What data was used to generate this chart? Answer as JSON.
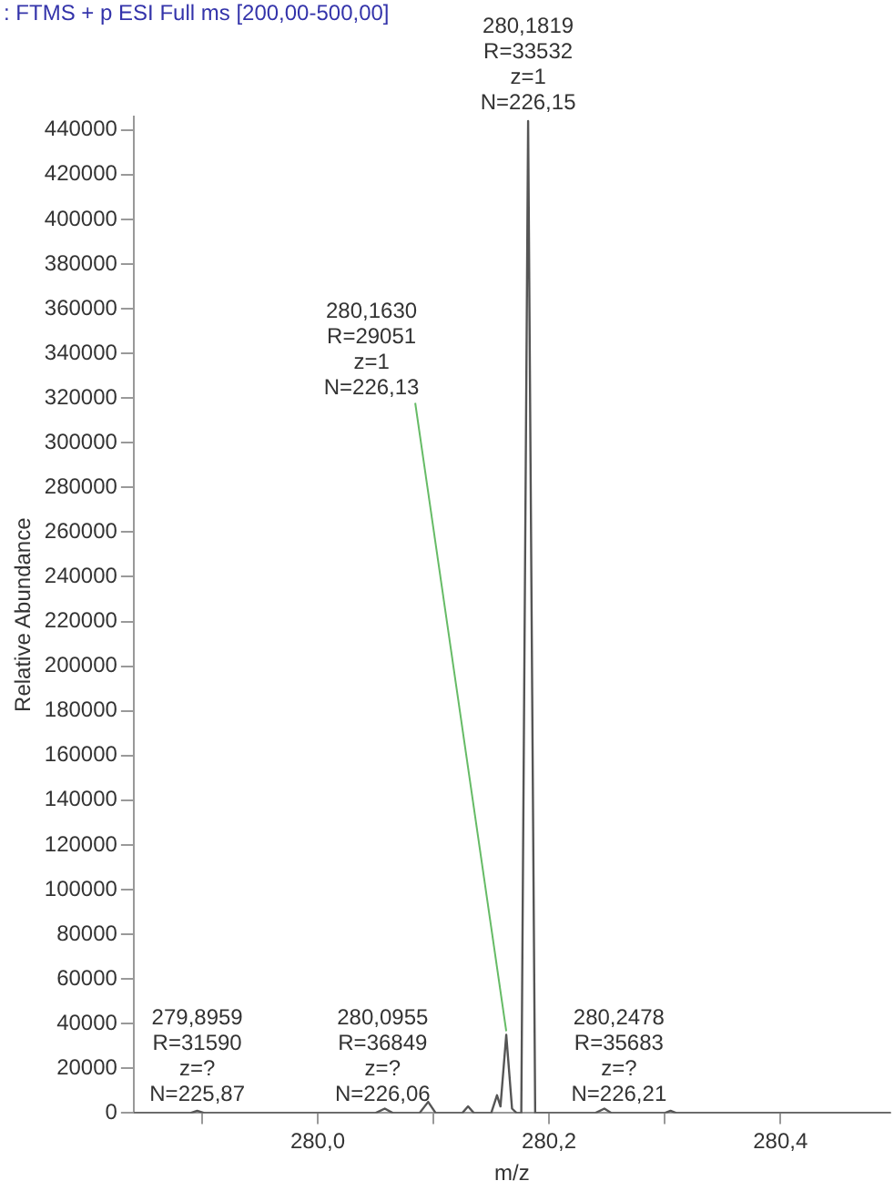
{
  "chart_data": {
    "type": "line",
    "title": ": FTMS + p ESI Full ms [200,00-500,00]",
    "xlabel": "m/z",
    "ylabel": "Relative Abundance",
    "series": [
      {
        "color": "#555555",
        "x": [
          279.841,
          279.89,
          279.8959,
          279.902,
          280.05,
          280.058,
          280.065,
          280.088,
          280.0955,
          280.102,
          280.125,
          280.13,
          280.135,
          280.15,
          280.155,
          280.158,
          280.163,
          280.168,
          280.172,
          280.176,
          280.1819,
          280.188,
          280.24,
          280.2478,
          280.254,
          280.3,
          280.305,
          280.31,
          280.495
        ],
        "values": [
          0,
          0,
          1000,
          0,
          0,
          2000,
          0,
          0,
          5000,
          0,
          0,
          3000,
          0,
          0,
          8000,
          3000,
          35000,
          2000,
          0,
          0,
          444000,
          0,
          0,
          2000,
          0,
          0,
          1000,
          0,
          0
        ]
      }
    ],
    "xlim": [
      279.841,
      280.495
    ],
    "ylim": [
      0,
      446000
    ],
    "xticks": [
      {
        "value": 279.9,
        "label": null
      },
      {
        "value": 280.0,
        "label": "280,0"
      },
      {
        "value": 280.1,
        "label": null
      },
      {
        "value": 280.2,
        "label": "280,2"
      },
      {
        "value": 280.3,
        "label": null
      },
      {
        "value": 280.4,
        "label": "280,4"
      }
    ],
    "yticks": [
      0,
      20000,
      40000,
      60000,
      80000,
      100000,
      120000,
      140000,
      160000,
      180000,
      200000,
      220000,
      240000,
      260000,
      280000,
      300000,
      320000,
      340000,
      360000,
      380000,
      400000,
      420000,
      440000
    ],
    "annotations": [
      {
        "text": "279,8959\nR=31590\nz=?\nN=225,87",
        "x": 279.8959,
        "y": 1000
      },
      {
        "text": "280,0955\nR=36849\nz=?\nN=226,06",
        "x": 280.0955,
        "y": 5000
      },
      {
        "text": "280,1630\nR=29051\nz=1\nN=226,13",
        "x": 280.163,
        "y": 35000
      },
      {
        "text": "280,1819\nR=33532\nz=1\nN=226,15",
        "x": 280.1819,
        "y": 444000
      },
      {
        "text": "280,2478\nR=35683\nz=?\nN=226,21",
        "x": 280.2478,
        "y": 2000
      }
    ],
    "grid": false,
    "legend": false,
    "marker": "none",
    "line_style": "solid"
  }
}
